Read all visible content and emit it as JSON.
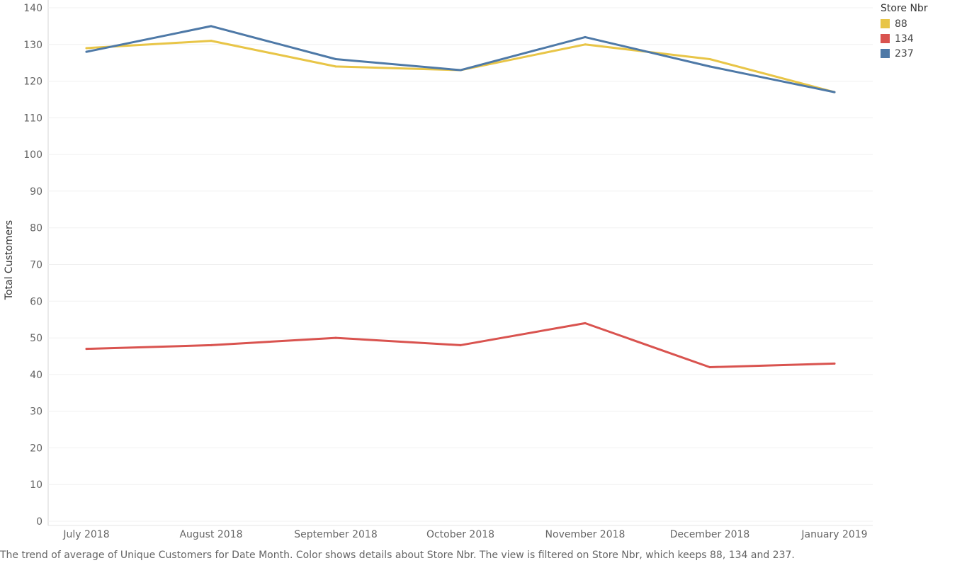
{
  "chart_data": {
    "type": "line",
    "title": "",
    "xlabel": "",
    "ylabel": "Total Customers",
    "ylim": [
      0,
      140
    ],
    "yticks": [
      0,
      10,
      20,
      30,
      40,
      50,
      60,
      70,
      80,
      90,
      100,
      110,
      120,
      130,
      140
    ],
    "categories": [
      "July 2018",
      "August 2018",
      "September 2018",
      "October 2018",
      "November 2018",
      "December 2018",
      "January 2019"
    ],
    "legend_title": "Store Nbr",
    "legend_position": "top-right",
    "grid": true,
    "series": [
      {
        "name": "88",
        "color": "#e8c547",
        "values": [
          129,
          131,
          124,
          123,
          130,
          126,
          117
        ]
      },
      {
        "name": "134",
        "color": "#d9534f",
        "values": [
          47,
          48,
          50,
          48,
          54,
          42,
          43
        ]
      },
      {
        "name": "237",
        "color": "#4e79a7",
        "values": [
          128,
          135,
          126,
          123,
          132,
          124,
          117
        ]
      }
    ]
  },
  "caption": "The trend of average of Unique Customers for Date Month.  Color shows details about Store Nbr. The view is filtered on Store Nbr, which keeps 88, 134 and 237."
}
